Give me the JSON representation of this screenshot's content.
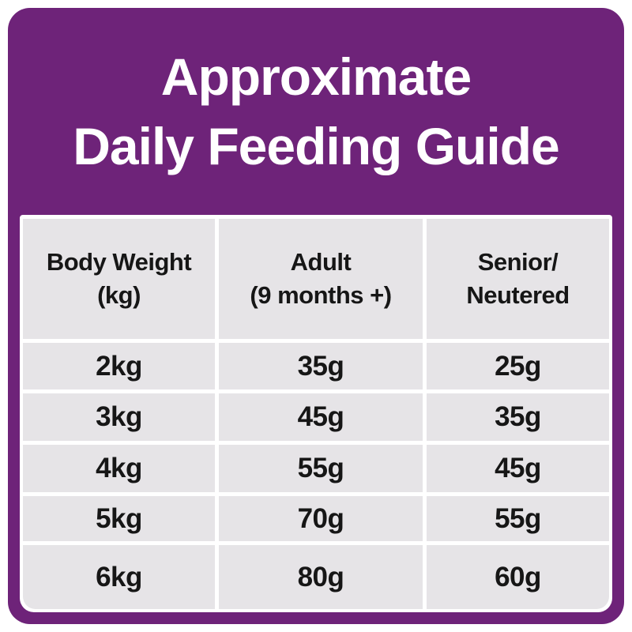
{
  "title": {
    "line1": "Approximate",
    "line2": "Daily Feeding Guide"
  },
  "table": {
    "columns": [
      {
        "line1": "Body Weight",
        "line2": "(kg)"
      },
      {
        "line1": "Adult",
        "line2": "(9 months +)"
      },
      {
        "line1": "Senior/",
        "line2": "Neutered"
      }
    ],
    "rows": [
      {
        "weight": "2kg",
        "adult": "35g",
        "senior": "25g"
      },
      {
        "weight": "3kg",
        "adult": "45g",
        "senior": "35g"
      },
      {
        "weight": "4kg",
        "adult": "55g",
        "senior": "45g"
      },
      {
        "weight": "5kg",
        "adult": "70g",
        "senior": "55g"
      },
      {
        "weight": "6kg",
        "adult": "80g",
        "senior": "60g"
      }
    ]
  },
  "colors": {
    "purple": "#6e2379",
    "cell_gray": "#e6e4e7",
    "gutter_white": "#ffffff",
    "text_dark": "#161616",
    "title_white": "#ffffff"
  },
  "chart_data": {
    "type": "table",
    "title": "Approximate Daily Feeding Guide",
    "columns": [
      "Body Weight (kg)",
      "Adult (9 months +)",
      "Senior/Neutered"
    ],
    "rows": [
      [
        "2kg",
        "35g",
        "25g"
      ],
      [
        "3kg",
        "45g",
        "35g"
      ],
      [
        "4kg",
        "55g",
        "45g"
      ],
      [
        "5kg",
        "70g",
        "55g"
      ],
      [
        "6kg",
        "80g",
        "60g"
      ]
    ],
    "units": {
      "body_weight": "kg",
      "portions": "g"
    }
  }
}
